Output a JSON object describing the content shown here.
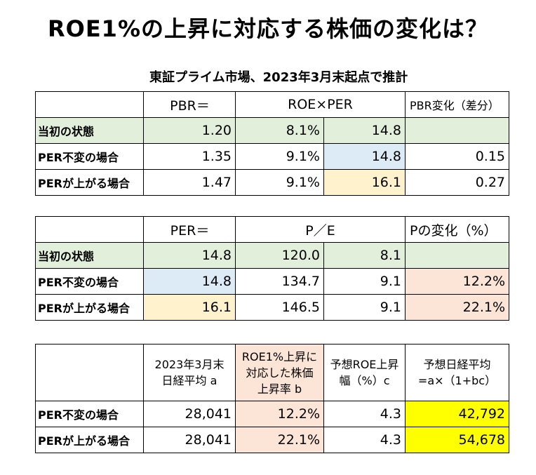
{
  "title": "ROE1%の上昇に対応する株価の変化は？",
  "subtitle": "東証プライム市場、2023年3月末起点で推計",
  "colors": {
    "green": "#e2efda",
    "blue": "#ddebf7",
    "orange": "#fff2cc",
    "peach": "#fce4d6",
    "yellow": "#ffff00"
  },
  "table1": {
    "headers": [
      "",
      "PBR＝",
      "ROE×PER",
      "",
      "PBR変化（差分）"
    ],
    "rows": [
      {
        "label": "当初の状態",
        "pbr": "1.20",
        "roe": "8.1%",
        "per": "14.8",
        "change": ""
      },
      {
        "label": "PER不変の場合",
        "pbr": "1.35",
        "roe": "9.1%",
        "per": "14.8",
        "change": "0.15"
      },
      {
        "label": "PERが上がる場合",
        "pbr": "1.47",
        "roe": "9.1%",
        "per": "16.1",
        "change": "0.27"
      }
    ]
  },
  "table2": {
    "headers": [
      "",
      "PER＝",
      "P／E",
      "",
      "Pの変化（%）"
    ],
    "rows": [
      {
        "label": "当初の状態",
        "per": "14.8",
        "p": "120.0",
        "e": "8.1",
        "change": ""
      },
      {
        "label": "PER不変の場合",
        "per": "14.8",
        "p": "134.7",
        "e": "9.1",
        "change": "12.2%"
      },
      {
        "label": "PERが上がる場合",
        "per": "16.1",
        "p": "146.5",
        "e": "9.1",
        "change": "22.1%"
      }
    ]
  },
  "table3": {
    "headers": [
      "",
      "2023年3月末\n日経平均 a",
      "ROE1%上昇に\n対応した株価\n上昇率 b",
      "予想ROE上昇\n幅（%）c",
      "予想日経平均\n=a×（1+bc）"
    ],
    "rows": [
      {
        "label": "PER不変の場合",
        "a": "28,041",
        "b": "12.2%",
        "c": "4.3",
        "result": "42,792"
      },
      {
        "label": "PERが上がる場合",
        "a": "28,041",
        "b": "22.1%",
        "c": "4.3",
        "result": "54,678"
      }
    ]
  }
}
